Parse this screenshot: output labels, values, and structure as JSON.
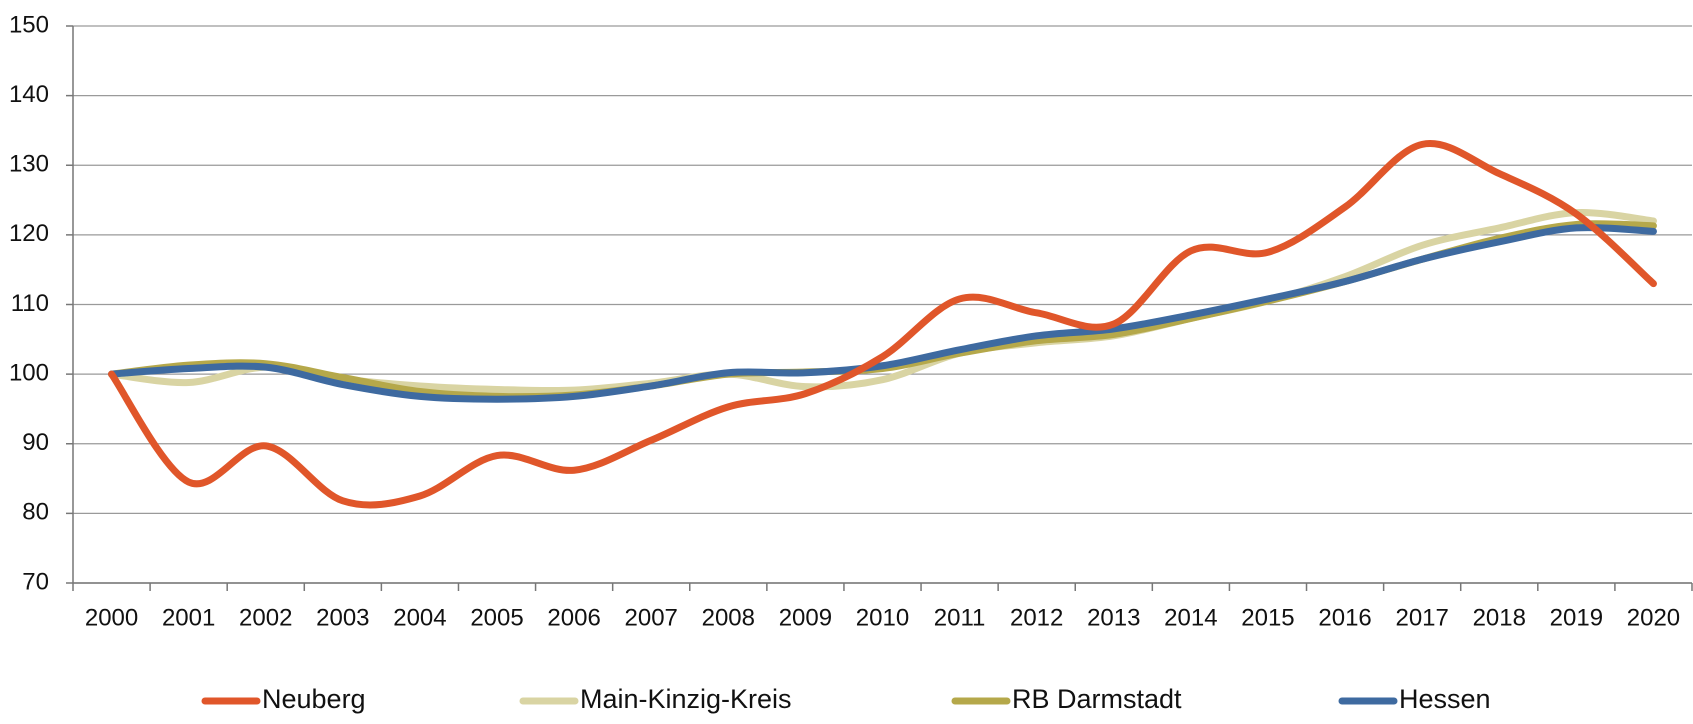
{
  "chart_data": {
    "type": "line",
    "categories": [
      "2000",
      "2001",
      "2002",
      "2003",
      "2004",
      "2005",
      "2006",
      "2007",
      "2008",
      "2009",
      "2010",
      "2011",
      "2012",
      "2013",
      "2014",
      "2015",
      "2016",
      "2017",
      "2018",
      "2019",
      "2020"
    ],
    "series": [
      {
        "name": "Neuberg",
        "color": "#e0562a",
        "values": [
          100,
          84.5,
          89.7,
          81.8,
          82.5,
          88.3,
          86.2,
          90.5,
          95.3,
          97.2,
          102.5,
          110.8,
          108.8,
          107.2,
          117.7,
          117.5,
          124,
          133,
          128.8,
          123,
          113
        ]
      },
      {
        "name": "Main-Kinzig-Kreis",
        "color": "#d9d4a3",
        "values": [
          100,
          98.8,
          101,
          99.3,
          98.3,
          97.8,
          97.7,
          98.7,
          100,
          98.2,
          99.2,
          103,
          104.5,
          105.5,
          108,
          110.5,
          114,
          118.5,
          121,
          123.2,
          122
        ]
      },
      {
        "name": "RB Darmstadt",
        "color": "#b5a84a",
        "values": [
          100,
          101.3,
          101.5,
          99.5,
          97.5,
          96.8,
          97,
          98.3,
          100,
          100.3,
          100.8,
          103,
          104.8,
          105.7,
          108,
          110.5,
          113.3,
          116.5,
          119.5,
          121.5,
          121.3
        ]
      },
      {
        "name": "Hessen",
        "color": "#3e6aa0",
        "values": [
          100,
          100.8,
          101,
          98.5,
          96.8,
          96.4,
          96.8,
          98.3,
          100.2,
          100.2,
          101.2,
          103.5,
          105.5,
          106.5,
          108.5,
          110.8,
          113.3,
          116.5,
          119,
          121,
          120.5
        ]
      }
    ],
    "ylim": [
      70,
      150
    ],
    "yticks": [
      70,
      80,
      90,
      100,
      110,
      120,
      130,
      140,
      150
    ],
    "grid": true,
    "legend": "bottom"
  }
}
